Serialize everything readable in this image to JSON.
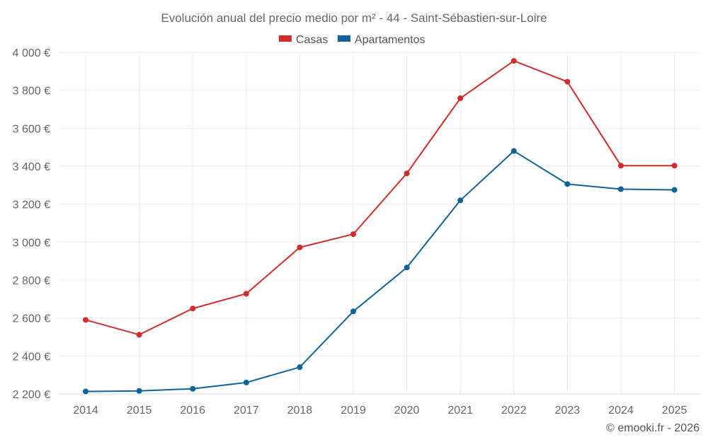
{
  "chart_data": {
    "type": "line",
    "title": "Evolución anual del precio medio por m² - 44 - Saint-Sébastien-sur-Loire",
    "categories": [
      "2014",
      "2015",
      "2016",
      "2017",
      "2018",
      "2019",
      "2020",
      "2021",
      "2022",
      "2023",
      "2024",
      "2025"
    ],
    "series": [
      {
        "name": "Casas",
        "color": "#d42a2a",
        "values": [
          2590,
          2512,
          2650,
          2728,
          2972,
          3042,
          3362,
          3758,
          3955,
          3845,
          3403,
          3403
        ]
      },
      {
        "name": "Apartamentos",
        "color": "#0e6399",
        "values": [
          2213,
          2216,
          2227,
          2260,
          2341,
          2635,
          2866,
          3220,
          3480,
          3306,
          3279,
          3275
        ]
      }
    ],
    "ylim": [
      2200,
      4000
    ],
    "yticks": [
      2200,
      2400,
      2600,
      2800,
      3000,
      3200,
      3400,
      3600,
      3800,
      4000
    ],
    "ytick_labels": [
      "2 200 €",
      "2 400 €",
      "2 600 €",
      "2 800 €",
      "3 000 €",
      "3 200 €",
      "3 400 €",
      "3 600 €",
      "3 800 €",
      "4 000 €"
    ],
    "grid": true,
    "legend": "top-center",
    "credit": "© emooki.fr - 2026"
  }
}
